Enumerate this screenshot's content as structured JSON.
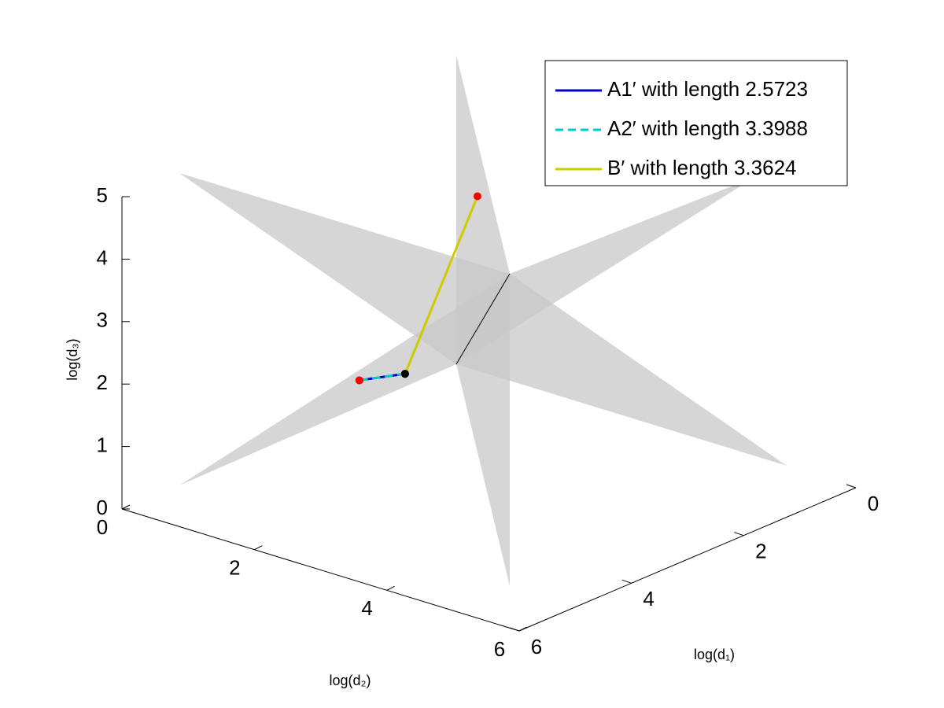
{
  "chart_data": {
    "type": "line3d",
    "xlabel": "log(d₁)",
    "ylabel": "log(d₂)",
    "zlabel": "log(d₃)",
    "xlim": [
      0,
      6
    ],
    "ylim": [
      0,
      6
    ],
    "zlim": [
      0,
      5
    ],
    "xticks": [
      0,
      2,
      4,
      6
    ],
    "yticks": [
      0,
      2,
      4,
      6
    ],
    "zticks": [
      0,
      1,
      2,
      3,
      4,
      5
    ],
    "start_color": "#000000",
    "end_color": "#ff0000",
    "series": [
      {
        "name": "A1′ with length 2.5723",
        "color": "#0000cc",
        "dash": false,
        "x": [
          3.94,
          2.63
        ],
        "y": [
          2.53,
          0.73
        ],
        "z": [
          2.2,
          1.01
        ]
      },
      {
        "name": "A2′ with length 3.3988",
        "color": "#00cccc",
        "dash": true,
        "x": [
          3.94,
          2.63
        ],
        "y": [
          2.53,
          0.73
        ],
        "z": [
          2.2,
          1.01
        ]
      },
      {
        "name": "B′  with length 3.3624",
        "color": "#cccc00",
        "dash": false,
        "x": [
          3.94,
          3.44
        ],
        "y": [
          2.53,
          3.2
        ],
        "z": [
          2.2,
          5.07
        ]
      }
    ]
  }
}
